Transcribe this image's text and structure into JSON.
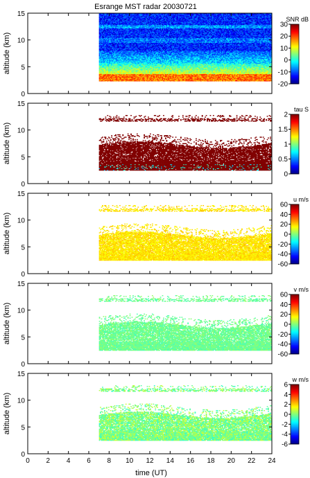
{
  "title": "Esrange MST radar 20030721",
  "xlabel": "time (UT)",
  "chart_data": {
    "type": "heatmap",
    "title": "Esrange MST radar 20030721",
    "xlabel": "time (UT)",
    "xlim": [
      0,
      24
    ],
    "xticks": [
      0,
      2,
      4,
      6,
      8,
      10,
      12,
      14,
      16,
      18,
      20,
      22,
      24
    ],
    "data_start_hour": 7,
    "panels": [
      {
        "id": "snr",
        "ylabel": "altitude (km)",
        "ylim": [
          0,
          15
        ],
        "yticks": [
          0,
          5,
          10,
          15
        ],
        "colorbar_label": "SNR dB",
        "clim": [
          -20,
          30
        ],
        "cticks": [
          -20,
          -10,
          0,
          10,
          20,
          30
        ],
        "colormap": "jet",
        "description_values": {
          "upper_altitudes_dB": -15,
          "mid_altitudes_dB": -5,
          "low_altitudes_dB": 15
        }
      },
      {
        "id": "tau",
        "ylabel": "altitude (km)",
        "ylim": [
          0,
          15
        ],
        "yticks": [
          0,
          5,
          10,
          15
        ],
        "colorbar_label": "tau S",
        "clim": [
          0,
          2
        ],
        "cticks": [
          0,
          0.5,
          1,
          1.5,
          2
        ],
        "colormap": "jet",
        "description_values": {
          "typical_s": 2,
          "layer_km": [
            2.5,
            7.5
          ],
          "upper_layer_km": 11.8
        }
      },
      {
        "id": "u",
        "ylabel": "altitude (km)",
        "ylim": [
          0,
          15
        ],
        "yticks": [
          0,
          5,
          10,
          15
        ],
        "colorbar_label": "u m/s",
        "clim": [
          -60,
          60
        ],
        "cticks": [
          -60,
          -40,
          -20,
          0,
          20,
          40,
          60
        ],
        "colormap": "jet",
        "description_values": {
          "typical_ms": 18
        }
      },
      {
        "id": "v",
        "ylabel": "altitude (km)",
        "ylim": [
          0,
          15
        ],
        "yticks": [
          0,
          5,
          10,
          15
        ],
        "colorbar_label": "v m/s",
        "clim": [
          -60,
          60
        ],
        "cticks": [
          -60,
          -40,
          -20,
          0,
          20,
          40,
          60
        ],
        "colormap": "jet",
        "description_values": {
          "typical_ms": -2
        }
      },
      {
        "id": "w",
        "ylabel": "altitude (km)",
        "ylim": [
          0,
          15
        ],
        "yticks": [
          0,
          5,
          10,
          15
        ],
        "colorbar_label": "w m/s",
        "clim": [
          -6,
          6
        ],
        "cticks": [
          -6,
          -4,
          -2,
          0,
          2,
          4,
          6
        ],
        "colormap": "jet",
        "description_values": {
          "typical_ms": 0
        }
      }
    ]
  }
}
